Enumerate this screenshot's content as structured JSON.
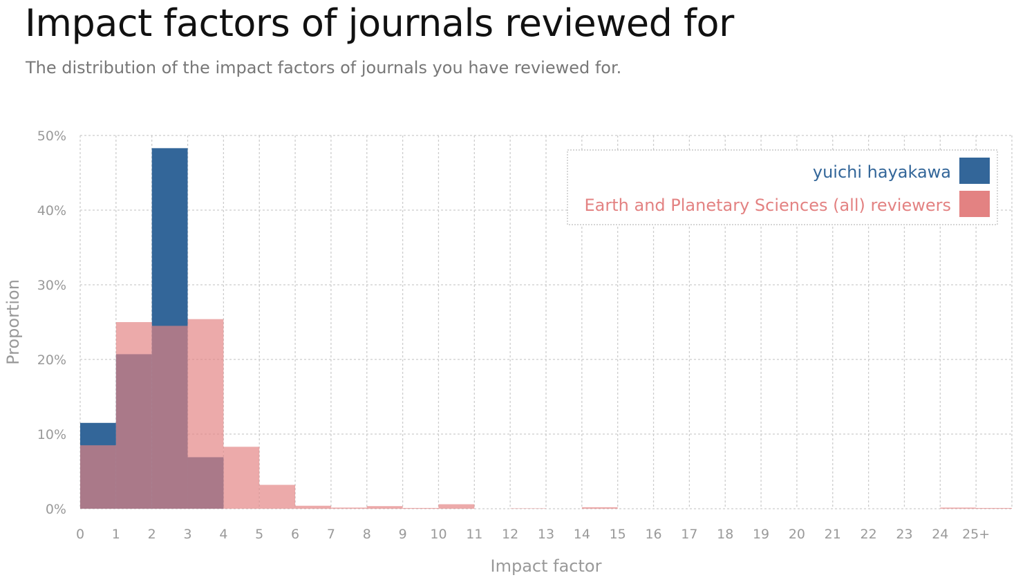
{
  "title": "Impact factors of journals reviewed for",
  "subtitle": "The distribution of the impact factors of journals you have reviewed for.",
  "colors": {
    "series_user": "#336699",
    "series_field": "#e38282",
    "grid": "#cccccc",
    "tick": "#999999"
  },
  "chart_data": {
    "type": "bar",
    "xlabel": "Impact factor",
    "ylabel": "Proportion",
    "ylim": [
      0,
      50
    ],
    "y_ticks": [
      "0%",
      "10%",
      "20%",
      "30%",
      "40%",
      "50%"
    ],
    "x_ticks": [
      "0",
      "1",
      "2",
      "3",
      "4",
      "5",
      "6",
      "7",
      "8",
      "9",
      "10",
      "11",
      "12",
      "13",
      "14",
      "15",
      "16",
      "17",
      "18",
      "19",
      "20",
      "21",
      "22",
      "23",
      "24",
      "25+"
    ],
    "bins": 26,
    "grid": true,
    "legend_position": "top-right",
    "series": [
      {
        "name": "yuichi hayakawa",
        "color": "#336699",
        "values": [
          11.5,
          20.7,
          48.3,
          6.9,
          0,
          0,
          0,
          0,
          0,
          0,
          0,
          0,
          0,
          0,
          0,
          0,
          0,
          0,
          0,
          0,
          0,
          0,
          0,
          0,
          0,
          0
        ]
      },
      {
        "name": "Earth and Planetary Sciences (all) reviewers",
        "color": "#e38282",
        "values": [
          8.5,
          25.0,
          24.5,
          25.4,
          8.3,
          3.2,
          0.4,
          0.15,
          0.35,
          0.1,
          0.6,
          0,
          0.05,
          0,
          0.2,
          0,
          0,
          0,
          0,
          0,
          0,
          0,
          0,
          0,
          0.15,
          0.1
        ]
      }
    ]
  }
}
